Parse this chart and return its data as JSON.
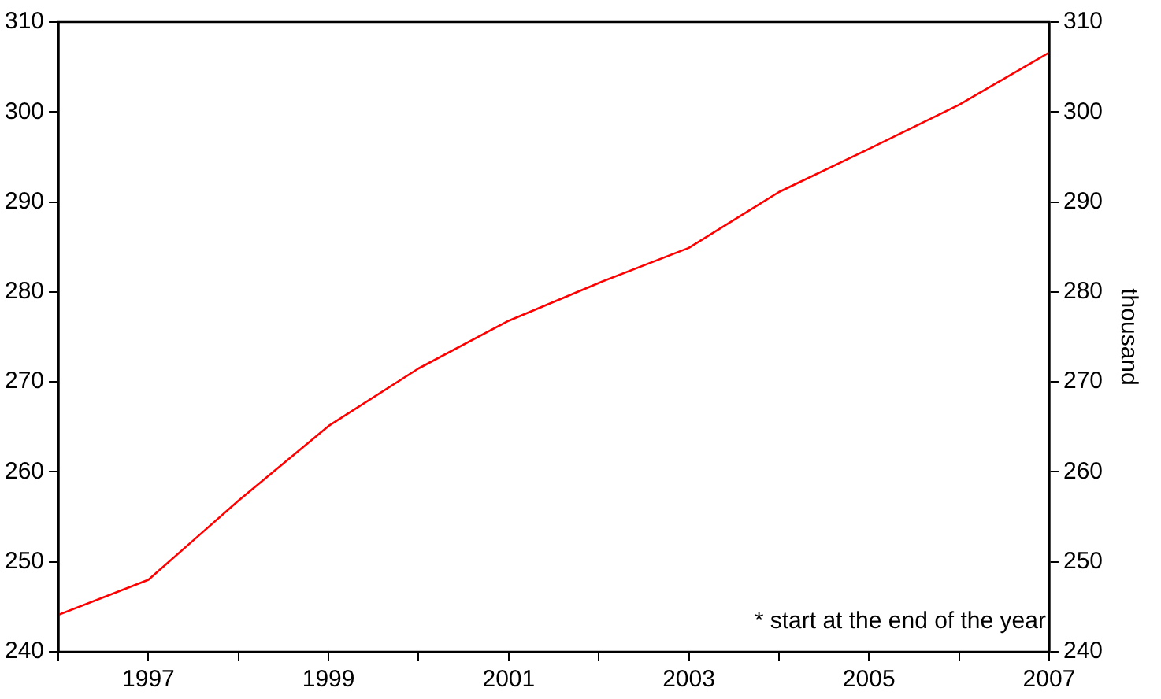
{
  "chart_data": {
    "type": "line",
    "y2label": "thousand",
    "x": [
      1996,
      1997,
      1998,
      1999,
      2000,
      2001,
      2002,
      2003,
      2004,
      2005,
      2006,
      2007
    ],
    "series": [
      {
        "color": "#ff0000",
        "values": [
          244.1,
          248.0,
          256.8,
          265.1,
          271.5,
          276.8,
          281.0,
          284.9,
          291.1,
          295.9,
          300.8,
          306.6
        ]
      }
    ],
    "xlim": [
      1996,
      2007
    ],
    "xticks": [
      {
        "value": 1996,
        "label": null
      },
      1997,
      {
        "value": 1998,
        "label": null
      },
      1999,
      {
        "value": 2000,
        "label": null
      },
      2001,
      {
        "value": 2002,
        "label": null
      },
      2003,
      {
        "value": 2004,
        "label": null
      },
      2005,
      {
        "value": 2006,
        "label": null
      },
      2007
    ],
    "ylim": [
      240,
      310
    ],
    "yticks": [
      240,
      250,
      260,
      270,
      280,
      290,
      300,
      310
    ],
    "y2lim": [
      240,
      310
    ],
    "y2ticks": [
      240,
      250,
      260,
      270,
      280,
      290,
      300,
      310
    ],
    "annotations": [
      "* start at the end of the year"
    ],
    "grid": false,
    "legend": false,
    "marker": "none",
    "line_style": "solid"
  }
}
